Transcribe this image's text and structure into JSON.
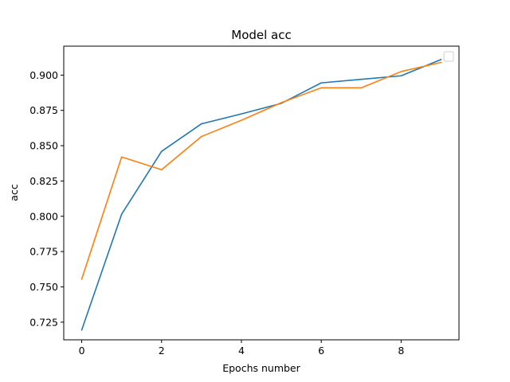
{
  "chart_data": {
    "type": "line",
    "title": "Model acc",
    "xlabel": "Epochs number",
    "ylabel": "acc",
    "xlim": [
      -0.45,
      9.45
    ],
    "ylim": [
      0.7125,
      0.9205
    ],
    "xticks": [
      0,
      2,
      4,
      6,
      8
    ],
    "xtick_labels": [
      "0",
      "2",
      "4",
      "6",
      "8"
    ],
    "yticks": [
      0.725,
      0.75,
      0.775,
      0.8,
      0.825,
      0.85,
      0.875,
      0.9
    ],
    "ytick_labels": [
      "0.725",
      "0.750",
      "0.775",
      "0.800",
      "0.825",
      "0.850",
      "0.875",
      "0.900"
    ],
    "grid": false,
    "legend": {
      "placement": "top-right",
      "entries": []
    },
    "x": [
      0,
      1,
      2,
      3,
      4,
      5,
      6,
      7,
      8,
      9
    ],
    "series": [
      {
        "color": "#1f77b4",
        "values": [
          0.7195,
          0.8015,
          0.846,
          0.8655,
          0.8725,
          0.88,
          0.8945,
          0.897,
          0.8995,
          0.911
        ]
      },
      {
        "color": "#ff7f0e",
        "values": [
          0.7555,
          0.842,
          0.833,
          0.8565,
          0.868,
          0.8805,
          0.891,
          0.891,
          0.9025,
          0.909
        ]
      }
    ]
  }
}
